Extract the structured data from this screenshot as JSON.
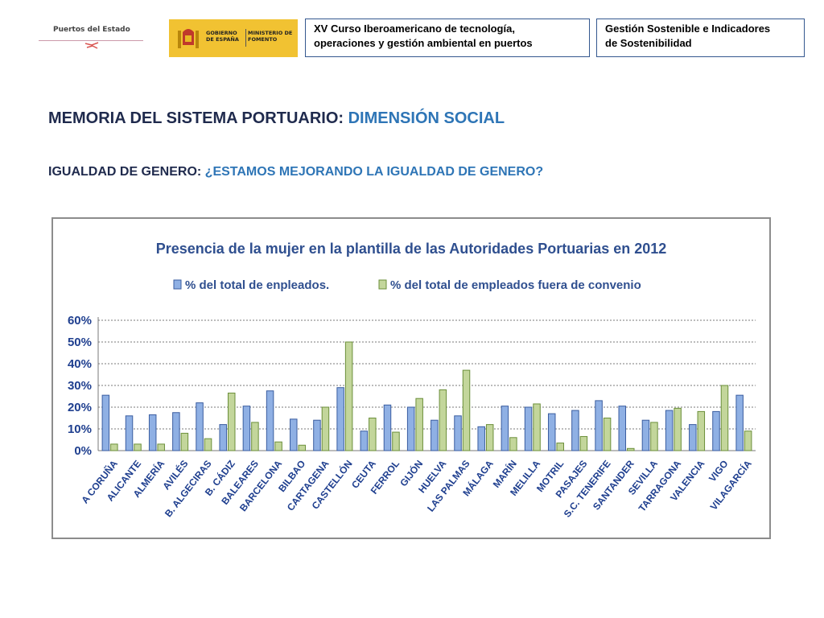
{
  "header": {
    "logo_left_text": "Puertos del Estado",
    "logo_gov_text_1": "GOBIERNO DE ESPAÑA",
    "logo_gov_text_2": "MINISTERIO DE FOMENTO",
    "course_box_line1": "XV Curso Iberoamericano de tecnología,",
    "course_box_line2": "operaciones y gestión ambiental en puertos",
    "topic_box_line1": "Gestión Sostenible e Indicadores",
    "topic_box_line2": "de Sostenibilidad"
  },
  "main": {
    "title_prefix": "MEMORIA DEL SISTEMA PORTUARIO: ",
    "title_highlight": "DIMENSIÓN SOCIAL",
    "subtitle_prefix": "IGUALDAD DE GENERO: ",
    "subtitle_highlight": "¿ESTAMOS MEJORANDO LA IGUALDAD DE GENERO?"
  },
  "colors": {
    "series1": "#8fb0e4",
    "series2": "#c3d69b",
    "heading": "#1f2a4d",
    "accent": "#2e75b6",
    "chart_title": "#2f4f8f",
    "tick_labels": "#1f3f8f"
  },
  "chart_data": {
    "type": "bar",
    "title": "Presencia de la mujer en la plantilla de las Autoridades Portuarias en 2012",
    "xlabel": "",
    "ylabel": "",
    "ylim": [
      0,
      60
    ],
    "yticks": [
      "0%",
      "10%",
      "20%",
      "30%",
      "40%",
      "50%",
      "60%"
    ],
    "grid": true,
    "legend_position": "top",
    "categories": [
      "A CORUÑA",
      "ALICANTE",
      "ALMERÍA",
      "AVILÉS",
      "B. ALGECIRAS",
      "B. CÁDIZ",
      "BALEARES",
      "BARCELONA",
      "BILBAO",
      "CARTAGENA",
      "CASTELLÓN",
      "CEUTA",
      "FERROL",
      "GIJÓN",
      "HUELVA",
      "LAS PALMAS",
      "MÁLAGA",
      "MARÍN",
      "MELILLA",
      "MOTRIL",
      "PASAJES",
      "S.C. TENERIFE",
      "SANTANDER",
      "SEVILLA",
      "TARRAGONA",
      "VALENCIA",
      "VIGO",
      "VILAGARCÍA"
    ],
    "series": [
      {
        "name": "% del  total de enpleados.",
        "values": [
          25.5,
          16,
          16.5,
          17.5,
          22,
          12,
          20.5,
          27.5,
          14.5,
          14,
          29,
          9,
          21,
          20,
          14,
          16,
          11,
          20.5,
          20,
          17,
          18.5,
          23,
          20.5,
          14,
          18.5,
          12,
          18,
          25.5
        ]
      },
      {
        "name": "% del total de empleados fuera de convenio",
        "values": [
          3,
          3,
          3,
          8,
          5.5,
          26.5,
          13,
          4,
          2.5,
          20,
          50,
          15,
          8.5,
          24,
          28,
          37,
          12,
          6,
          21.5,
          3.5,
          6.5,
          15,
          1,
          13,
          19.5,
          18,
          30,
          9
        ]
      }
    ]
  }
}
